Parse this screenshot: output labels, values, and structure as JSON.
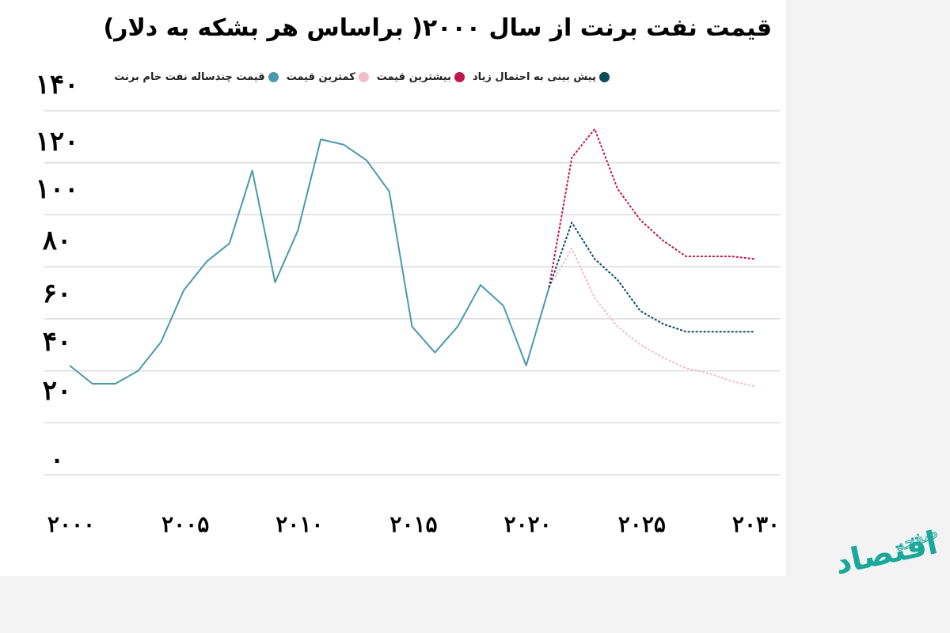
{
  "chart_data": {
    "type": "line",
    "title": "قیمت نفت برنت از سال ۲۰۰۰( براساس هر بشکه به دلار)",
    "xlabel": "",
    "ylabel": "",
    "ylim": [
      0,
      140
    ],
    "xlim": [
      2000,
      2030
    ],
    "grid": true,
    "legend_placement": "top",
    "y_ticks": [
      0,
      20,
      40,
      60,
      80,
      100,
      120,
      140
    ],
    "y_tick_labels": [
      "۰",
      "۲۰",
      "۴۰",
      "۶۰",
      "۸۰",
      "۱۰۰",
      "۱۲۰",
      "۱۴۰"
    ],
    "x_ticks": [
      2000,
      2005,
      2010,
      2015,
      2020,
      2025,
      2030
    ],
    "x_tick_labels": [
      "۲۰۰۰",
      "۲۰۰۵",
      "۲۰۱۰",
      "۲۰۱۵",
      "۲۰۲۰",
      "۲۰۲۵",
      "۲۰۳۰"
    ],
    "series": [
      {
        "name": "قیمت چندساله نفت خام برنت",
        "color": "#4a9aaa",
        "style": "solid",
        "x": [
          2000,
          2001,
          2002,
          2003,
          2004,
          2005,
          2006,
          2007,
          2008,
          2009,
          2010,
          2011,
          2012,
          2013,
          2014,
          2015,
          2016,
          2017,
          2018,
          2019,
          2020,
          2021
        ],
        "values": [
          42,
          35,
          35,
          40,
          51,
          71,
          82,
          89,
          117,
          74,
          94,
          129,
          127,
          121,
          109,
          57,
          47,
          57,
          73,
          65,
          42,
          72
        ]
      },
      {
        "name": "کمترین قیمت",
        "color": "#f0bfcd",
        "style": "dotted",
        "x": [
          2021,
          2022,
          2023,
          2024,
          2025,
          2026,
          2027,
          2028,
          2029,
          2030
        ],
        "values": [
          72,
          87,
          68,
          57,
          50,
          45,
          41,
          39,
          36,
          34
        ]
      },
      {
        "name": "بیشترین قیمت",
        "color": "#c0174f",
        "style": "dotted",
        "x": [
          2021,
          2022,
          2023,
          2024,
          2025,
          2026,
          2027,
          2028,
          2029,
          2030
        ],
        "values": [
          72,
          122,
          133,
          110,
          98,
          90,
          84,
          84,
          84,
          83
        ]
      },
      {
        "name": "پیش بینی  به احتمال زیاد",
        "color": "#0d4d5a",
        "style": "dotted",
        "x": [
          2021,
          2022,
          2023,
          2024,
          2025,
          2026,
          2027,
          2028,
          2029,
          2030
        ],
        "values": [
          72,
          97,
          83,
          75,
          63,
          58,
          55,
          55,
          55,
          55
        ]
      }
    ]
  },
  "logo": {
    "text": "صفحه اقتصاد",
    "color": "#1aa89a"
  }
}
